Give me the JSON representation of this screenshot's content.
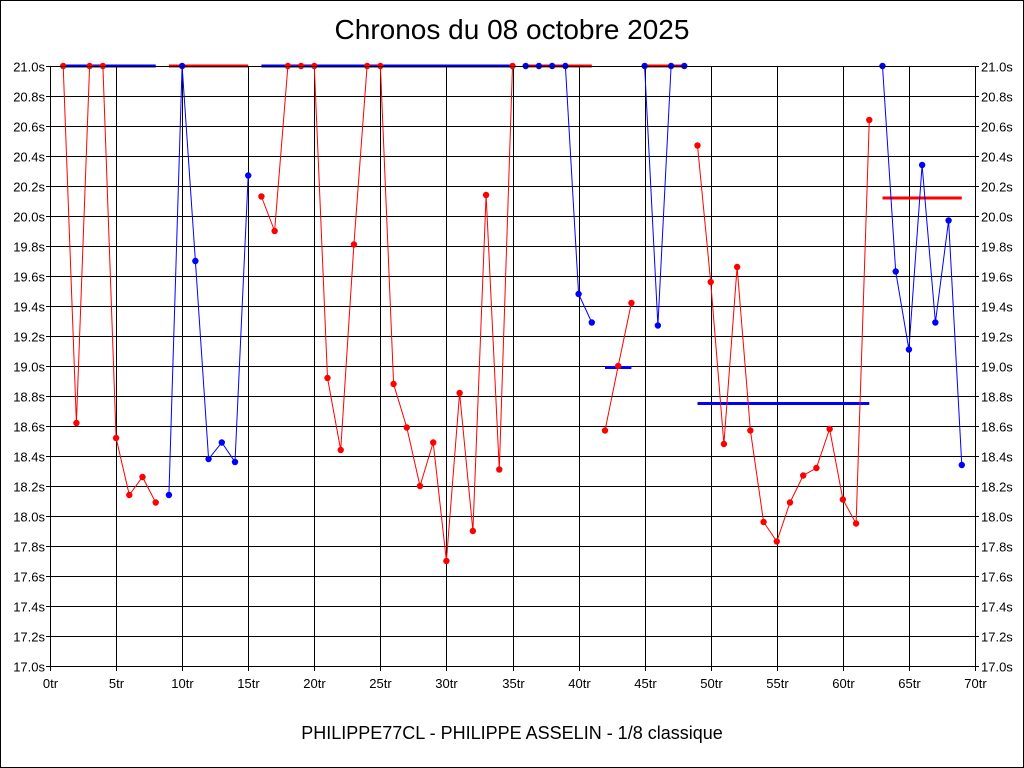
{
  "chart_data": {
    "type": "line",
    "title": "Chronos du 08 octobre 2025",
    "footer": "PHILIPPE77CL - PHILIPPE ASSELIN - 1/8 classique",
    "xlabel": "",
    "ylabel": "",
    "xlim": [
      0,
      70
    ],
    "ylim": [
      17.0,
      21.0
    ],
    "grid": true,
    "x_ticks": [
      0,
      5,
      10,
      15,
      20,
      25,
      30,
      35,
      40,
      45,
      50,
      55,
      60,
      65,
      70
    ],
    "x_tick_labels": [
      "0tr",
      "5tr",
      "10tr",
      "15tr",
      "20tr",
      "25tr",
      "30tr",
      "35tr",
      "40tr",
      "45tr",
      "50tr",
      "55tr",
      "60tr",
      "65tr",
      "70tr"
    ],
    "y_ticks": [
      17.0,
      17.2,
      17.4,
      17.6,
      17.8,
      18.0,
      18.2,
      18.4,
      18.6,
      18.8,
      19.0,
      19.2,
      19.4,
      19.6,
      19.8,
      20.0,
      20.2,
      20.4,
      20.6,
      20.8,
      21.0
    ],
    "y_tick_labels": [
      "17.0s",
      "17.2s",
      "17.4s",
      "17.6s",
      "17.8s",
      "18.0s",
      "18.2s",
      "18.4s",
      "18.6s",
      "18.8s",
      "19.0s",
      "19.2s",
      "19.4s",
      "19.6s",
      "19.8s",
      "20.0s",
      "20.2s",
      "20.4s",
      "20.6s",
      "20.8s",
      "21.0s"
    ],
    "colors": {
      "red": "#ff0000",
      "blue": "#0000ff"
    },
    "series": [
      {
        "color": "red",
        "points": [
          [
            1,
            21.0
          ],
          [
            2,
            18.62
          ],
          [
            3,
            21.0
          ],
          [
            4,
            21.0
          ],
          [
            5,
            18.52
          ],
          [
            6,
            18.14
          ],
          [
            7,
            18.26
          ],
          [
            8,
            18.09
          ]
        ]
      },
      {
        "color": "blue",
        "points": [
          [
            9,
            18.14
          ],
          [
            10,
            21.0
          ],
          [
            11,
            19.7
          ],
          [
            12,
            18.38
          ],
          [
            13,
            18.49
          ],
          [
            14,
            18.36
          ],
          [
            15,
            20.27
          ]
        ]
      },
      {
        "color": "red",
        "points": [
          [
            16,
            20.13
          ],
          [
            17,
            19.9
          ],
          [
            18,
            21.0
          ],
          [
            19,
            21.0
          ],
          [
            20,
            21.0
          ],
          [
            21,
            18.92
          ],
          [
            22,
            18.44
          ],
          [
            23,
            19.81
          ],
          [
            24,
            21.0
          ],
          [
            25,
            21.0
          ],
          [
            26,
            18.88
          ],
          [
            27,
            18.59
          ],
          [
            28,
            18.2
          ],
          [
            29,
            18.49
          ],
          [
            30,
            17.7
          ],
          [
            31,
            18.82
          ],
          [
            32,
            17.9
          ],
          [
            33,
            20.14
          ],
          [
            34,
            18.31
          ],
          [
            35,
            21.0
          ]
        ]
      },
      {
        "color": "blue",
        "points": [
          [
            36,
            21.0
          ],
          [
            37,
            21.0
          ],
          [
            38,
            21.0
          ],
          [
            39,
            21.0
          ],
          [
            40,
            19.48
          ],
          [
            41,
            19.29
          ]
        ]
      },
      {
        "color": "red",
        "points": [
          [
            42,
            18.57
          ],
          [
            43,
            19.0
          ],
          [
            44,
            19.42
          ]
        ]
      },
      {
        "color": "blue",
        "points": [
          [
            45,
            21.0
          ],
          [
            46,
            19.27
          ],
          [
            47,
            21.0
          ],
          [
            48,
            21.0
          ]
        ]
      },
      {
        "color": "red",
        "points": [
          [
            49,
            20.47
          ],
          [
            50,
            19.56
          ],
          [
            51,
            18.48
          ],
          [
            52,
            19.66
          ],
          [
            53,
            18.57
          ],
          [
            54,
            17.96
          ],
          [
            55,
            17.83
          ],
          [
            56,
            18.09
          ],
          [
            57,
            18.27
          ],
          [
            58,
            18.32
          ],
          [
            59,
            18.58
          ],
          [
            60,
            18.11
          ],
          [
            61,
            17.95
          ],
          [
            62,
            20.64
          ]
        ]
      },
      {
        "color": "blue",
        "points": [
          [
            63,
            21.0
          ],
          [
            64,
            19.63
          ],
          [
            65,
            19.11
          ],
          [
            66,
            20.34
          ],
          [
            67,
            19.29
          ],
          [
            68,
            19.97
          ],
          [
            69,
            18.34
          ]
        ]
      }
    ],
    "point_colors": {
      "blue_override": [
        [
          48,
          21.0
        ]
      ]
    },
    "average_lines": [
      {
        "color": "blue",
        "x_start": 1,
        "x_end": 8,
        "y": 21.0
      },
      {
        "color": "red",
        "x_start": 9,
        "x_end": 15,
        "y": 21.0
      },
      {
        "color": "blue",
        "x_start": 16,
        "x_end": 35,
        "y": 21.0
      },
      {
        "color": "red",
        "x_start": 36,
        "x_end": 41,
        "y": 21.0
      },
      {
        "color": "blue",
        "x_start": 42,
        "x_end": 44,
        "y": 18.99
      },
      {
        "color": "red",
        "x_start": 45,
        "x_end": 48,
        "y": 21.0
      },
      {
        "color": "blue",
        "x_start": 49,
        "x_end": 62,
        "y": 18.75
      },
      {
        "color": "red",
        "x_start": 63,
        "x_end": 69,
        "y": 20.12
      }
    ]
  }
}
